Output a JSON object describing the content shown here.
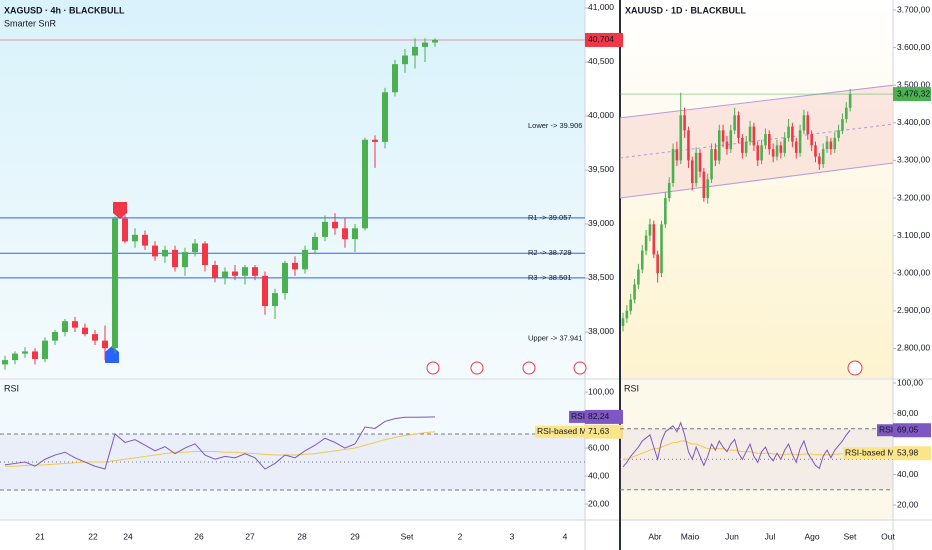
{
  "chart_data": [
    {
      "type": "candlestick",
      "title": "XAGUSD · 4h · BLACKBULL",
      "indicator": "Smarter SnR",
      "up_color": "#4caf50",
      "down_color": "#f23645",
      "candles": {
        "open": [
          37.7,
          37.74,
          37.8,
          37.82,
          37.75,
          37.92,
          38.0,
          38.1,
          38.04,
          37.98,
          37.92,
          37.85,
          39.05,
          38.84,
          38.9,
          38.8,
          38.7,
          38.76,
          38.6,
          38.74,
          38.82,
          38.62,
          38.5,
          38.56,
          38.52,
          38.6,
          38.52,
          38.24,
          38.36,
          38.64,
          38.58,
          38.76,
          38.88,
          39.02,
          38.96,
          38.86,
          38.96,
          39.78,
          39.76,
          40.22,
          40.48,
          40.56,
          40.64,
          40.68
        ],
        "high": [
          37.78,
          37.82,
          37.86,
          37.85,
          37.95,
          38.02,
          38.12,
          38.14,
          38.08,
          38.02,
          38.06,
          39.07,
          39.08,
          38.96,
          38.94,
          38.84,
          38.8,
          38.8,
          38.78,
          38.86,
          38.84,
          38.66,
          38.6,
          38.62,
          38.62,
          38.62,
          38.56,
          38.4,
          38.66,
          38.7,
          38.8,
          38.92,
          39.08,
          39.1,
          39.06,
          39.0,
          39.8,
          39.82,
          40.26,
          40.52,
          40.62,
          40.72,
          40.72,
          40.72
        ],
        "low": [
          37.65,
          37.7,
          37.76,
          37.7,
          37.72,
          37.88,
          37.96,
          38.0,
          37.96,
          37.88,
          37.74,
          37.8,
          38.82,
          38.78,
          38.76,
          38.66,
          38.64,
          38.56,
          38.52,
          38.7,
          38.56,
          38.46,
          38.44,
          38.48,
          38.44,
          38.48,
          38.16,
          38.12,
          38.3,
          38.52,
          38.54,
          38.72,
          38.84,
          38.9,
          38.78,
          38.74,
          38.94,
          39.52,
          39.7,
          40.18,
          40.4,
          40.44,
          40.5,
          40.64
        ],
        "close": [
          37.74,
          37.8,
          37.82,
          37.75,
          37.92,
          38.0,
          38.1,
          38.04,
          37.98,
          37.92,
          37.85,
          39.05,
          38.84,
          38.9,
          38.8,
          38.7,
          38.76,
          38.6,
          38.74,
          38.82,
          38.62,
          38.5,
          38.56,
          38.52,
          38.6,
          38.52,
          38.24,
          38.36,
          38.64,
          38.58,
          38.76,
          38.88,
          39.02,
          38.96,
          38.86,
          38.96,
          39.78,
          39.76,
          40.22,
          40.48,
          40.56,
          40.64,
          40.68,
          40.704
        ]
      },
      "ylim": [
        37.574,
        41.074
      ],
      "yticks": [
        {
          "value": 38.0,
          "label": "38,000"
        },
        {
          "value": 38.5,
          "label": "38,500"
        },
        {
          "value": 39.0,
          "label": "39,000"
        },
        {
          "value": 39.5,
          "label": "39,500"
        },
        {
          "value": 40.0,
          "label": "40,000"
        },
        {
          "value": 40.5,
          "label": "40,500"
        },
        {
          "value": 41.0,
          "label": "41,000"
        }
      ],
      "last_price": {
        "value": 40.704,
        "label": "40,704",
        "color": "#f23645"
      },
      "levels": [
        {
          "label": "Lower -> 39.906",
          "value": 39.906,
          "line": false,
          "color": "#f23645"
        },
        {
          "label": "R1 -> 39.057",
          "value": 39.057,
          "line": true,
          "color": "#2962ff"
        },
        {
          "label": "R2 -> 38.729",
          "value": 38.729,
          "line": true,
          "color": "#2962ff"
        },
        {
          "label": "R3 -> 38.501",
          "value": 38.501,
          "line": true,
          "color": "#2962ff"
        },
        {
          "label": "Upper -> 37.941",
          "value": 37.941,
          "line": false,
          "color": "#2962ff"
        }
      ],
      "xtick_labels": [
        "21",
        "22",
        "24",
        "26",
        "27",
        "28",
        "29",
        "Set",
        "2",
        "3",
        "4"
      ],
      "rsi": {
        "name": "RSI",
        "color": "#7e57c2",
        "ma_name": "RSI-based MA",
        "ma_color": "#f0c94a",
        "values": [
          48,
          49,
          50,
          47,
          52,
          55,
          57,
          53,
          50,
          47,
          45,
          70,
          64,
          66,
          62,
          58,
          61,
          56,
          60,
          63,
          55,
          52,
          54,
          53,
          56,
          53,
          45,
          49,
          55,
          53,
          58,
          62,
          67,
          64,
          60,
          63,
          75,
          74,
          79,
          81,
          82,
          82,
          82.1,
          82.24
        ],
        "ma_values": [
          47,
          47,
          47.5,
          47.8,
          48,
          48.5,
          49,
          49.5,
          50,
          50,
          50,
          51,
          52,
          53,
          54,
          55,
          56,
          57,
          57,
          57.5,
          57.5,
          57.5,
          57,
          57,
          56.5,
          56,
          55.5,
          55,
          55,
          55,
          55.5,
          56,
          57,
          58,
          59,
          60,
          62,
          64,
          66,
          67.5,
          69,
          70,
          71,
          71.63
        ],
        "last": {
          "value": 82.24,
          "label": "82,24"
        },
        "ma_last": {
          "value": 71.63,
          "label": "71,63"
        },
        "bands": [
          30,
          70
        ],
        "midline": 50,
        "ylim": [
          8.6,
          108.6
        ],
        "yticks": [
          {
            "value": 20,
            "label": "20,00"
          },
          {
            "value": 40,
            "label": "40,00"
          },
          {
            "value": 60,
            "label": "60,00"
          },
          {
            "value": 100,
            "label": "100,00"
          }
        ]
      }
    },
    {
      "type": "candlestick",
      "title": "XAUUSD · 1D · BLACKBULL",
      "up_color": "#4caf50",
      "down_color": "#f23645",
      "candles": {
        "open": [
          2860,
          2880,
          2900,
          2930,
          2970,
          3010,
          3060,
          3100,
          3130,
          3050,
          3000,
          3130,
          3200,
          3240,
          3330,
          3300,
          3420,
          3380,
          3300,
          3240,
          3320,
          3270,
          3200,
          3250,
          3330,
          3300,
          3380,
          3350,
          3330,
          3380,
          3420,
          3360,
          3320,
          3350,
          3390,
          3340,
          3300,
          3340,
          3370,
          3330,
          3310,
          3340,
          3320,
          3360,
          3390,
          3350,
          3320,
          3380,
          3420,
          3370,
          3340,
          3310,
          3290,
          3330,
          3350,
          3330,
          3360,
          3380,
          3410,
          3440
        ],
        "high": [
          2895,
          2915,
          2945,
          2985,
          3025,
          3075,
          3115,
          3145,
          3140,
          3060,
          3140,
          3215,
          3255,
          3345,
          3350,
          3480,
          3440,
          3390,
          3310,
          3335,
          3330,
          3280,
          3265,
          3345,
          3345,
          3395,
          3395,
          3365,
          3395,
          3440,
          3430,
          3370,
          3365,
          3405,
          3400,
          3350,
          3355,
          3385,
          3380,
          3345,
          3355,
          3350,
          3375,
          3410,
          3400,
          3360,
          3395,
          3435,
          3430,
          3380,
          3350,
          3320,
          3345,
          3365,
          3360,
          3375,
          3395,
          3425,
          3455,
          3490
        ],
        "low": [
          2845,
          2868,
          2890,
          2920,
          2958,
          3000,
          3048,
          3085,
          3040,
          2975,
          2990,
          3120,
          3190,
          3230,
          3285,
          3290,
          3360,
          3280,
          3220,
          3230,
          3255,
          3190,
          3185,
          3240,
          3285,
          3290,
          3335,
          3315,
          3320,
          3370,
          3345,
          3305,
          3310,
          3340,
          3325,
          3285,
          3290,
          3330,
          3315,
          3295,
          3300,
          3305,
          3310,
          3350,
          3335,
          3305,
          3310,
          3370,
          3355,
          3325,
          3295,
          3275,
          3280,
          3320,
          3315,
          3320,
          3350,
          3370,
          3400,
          3430
        ],
        "close": [
          2880,
          2900,
          2930,
          2970,
          3010,
          3060,
          3100,
          3130,
          3050,
          3000,
          3130,
          3200,
          3240,
          3330,
          3300,
          3420,
          3380,
          3300,
          3240,
          3320,
          3270,
          3200,
          3250,
          3330,
          3300,
          3380,
          3350,
          3330,
          3380,
          3420,
          3360,
          3320,
          3350,
          3390,
          3340,
          3300,
          3340,
          3370,
          3330,
          3310,
          3340,
          3320,
          3360,
          3390,
          3350,
          3320,
          3380,
          3420,
          3370,
          3340,
          3310,
          3290,
          3330,
          3350,
          3330,
          3360,
          3380,
          3410,
          3440,
          3476.32
        ]
      },
      "ylim": [
        2721.3,
        3726.6
      ],
      "yticks": [
        {
          "value": 2800,
          "label": "2.800,00"
        },
        {
          "value": 2900,
          "label": "2.900,00"
        },
        {
          "value": 3000,
          "label": "3.000,00"
        },
        {
          "value": 3100,
          "label": "3.100,00"
        },
        {
          "value": 3200,
          "label": "3.200,00"
        },
        {
          "value": 3300,
          "label": "3.300,00"
        },
        {
          "value": 3400,
          "label": "3.400,00"
        },
        {
          "value": 3500,
          "label": "3.500,00"
        },
        {
          "value": 3600,
          "label": "3.600,00"
        },
        {
          "value": 3700,
          "label": "3.700,00"
        }
      ],
      "last_price": {
        "value": 3476.32,
        "label": "3.476,32",
        "color": "#4caf50"
      },
      "channel": {
        "upper": [
          3413,
          3500
        ],
        "lower": [
          3200,
          3293
        ],
        "color": "#b39ddb",
        "fill": "#f8d9d4"
      },
      "xtick_labels": [
        "Abr",
        "Maio",
        "Jun",
        "Jul",
        "Ago",
        "Set",
        "Out"
      ],
      "rsi": {
        "name": "RSI",
        "color": "#7e57c2",
        "ma_name": "RSI-based MA",
        "ma_color": "#f0c94a",
        "values": [
          45,
          48,
          52,
          55,
          58,
          62,
          64,
          66,
          58,
          50,
          62,
          68,
          70,
          72,
          68,
          74,
          66,
          55,
          50,
          58,
          52,
          46,
          52,
          60,
          56,
          62,
          58,
          55,
          60,
          63,
          54,
          50,
          55,
          60,
          52,
          48,
          55,
          58,
          52,
          49,
          54,
          50,
          56,
          60,
          53,
          48,
          57,
          62,
          54,
          50,
          46,
          44,
          52,
          56,
          51,
          56,
          59,
          62,
          66,
          69.05
        ],
        "ma_values": [
          50,
          50,
          51,
          52,
          53,
          54,
          55,
          56,
          57,
          57,
          58,
          59,
          60,
          61,
          61,
          62,
          62,
          61,
          60,
          60,
          59,
          58,
          57,
          57,
          57,
          57,
          57,
          56,
          56,
          56,
          55.5,
          55,
          55,
          55,
          54.5,
          54,
          54,
          54,
          54,
          53.5,
          53.5,
          53,
          53,
          53.5,
          53.5,
          53,
          53,
          53.5,
          53.5,
          53.5,
          53,
          53,
          53,
          53,
          53,
          53.2,
          53.4,
          53.6,
          53.8,
          53.98
        ],
        "last": {
          "value": 69.05,
          "label": "69,05"
        },
        "ma_last": {
          "value": 53.98,
          "label": "53,98"
        },
        "bands": [
          30,
          70
        ],
        "midline": 50,
        "ylim": [
          10.2,
          102
        ],
        "yticks": [
          {
            "value": 20,
            "label": "20,00"
          },
          {
            "value": 40,
            "label": "40,00"
          },
          {
            "value": 80,
            "label": "80,00"
          },
          {
            "value": 100,
            "label": "100,00"
          }
        ]
      }
    }
  ]
}
